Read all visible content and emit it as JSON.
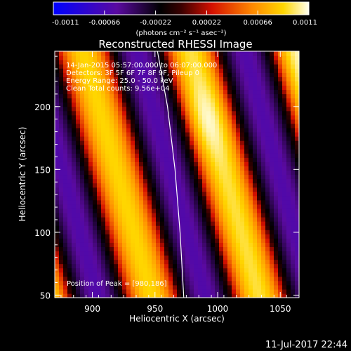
{
  "chart_data": {
    "type": "heatmap",
    "title": "Reconstructed RHESSI Image",
    "xlabel": "Heliocentric X (arcsec)",
    "ylabel": "Heliocentric Y (arcsec)",
    "xlim": [
      870,
      1065
    ],
    "ylim": [
      48,
      244
    ],
    "x_ticks": [
      900,
      950,
      1000,
      1050
    ],
    "y_ticks": [
      50,
      100,
      150,
      200
    ],
    "colorbar": {
      "min": -0.0011,
      "max": 0.0011,
      "ticks": [
        "-0.0011",
        "-0.00066",
        "-0.00022",
        "0.00022",
        "0.00066",
        "0.0011"
      ],
      "units_label": "(photons cm⁻² s⁻¹ asec⁻²)"
    },
    "info_lines": [
      "14-Jan-2015 05:57:00.000 to 06:07:00.000",
      "Detectors: 3F 5F 6F 7F 8F 9F, Pileup 0",
      "Energy Range: 25.0 - 50.0 keV",
      "Clean     Total counts: 9.56e+04"
    ],
    "peak_label": "Position of Peak = [980,186]",
    "peak": [
      980,
      186
    ],
    "limb_arc": [
      [
        952,
        244
      ],
      [
        960,
        200
      ],
      [
        966,
        150
      ],
      [
        970,
        100
      ],
      [
        973,
        48
      ]
    ],
    "stripes": {
      "angle_dx_per_dy": 0.28,
      "period_arcsec": 86,
      "ref_x_at_y150": 1005,
      "brightness_levels": [
        0.85,
        0.95,
        1.0,
        0.9,
        0.8
      ]
    },
    "footer_date": "11-Jul-2017 22:44"
  }
}
